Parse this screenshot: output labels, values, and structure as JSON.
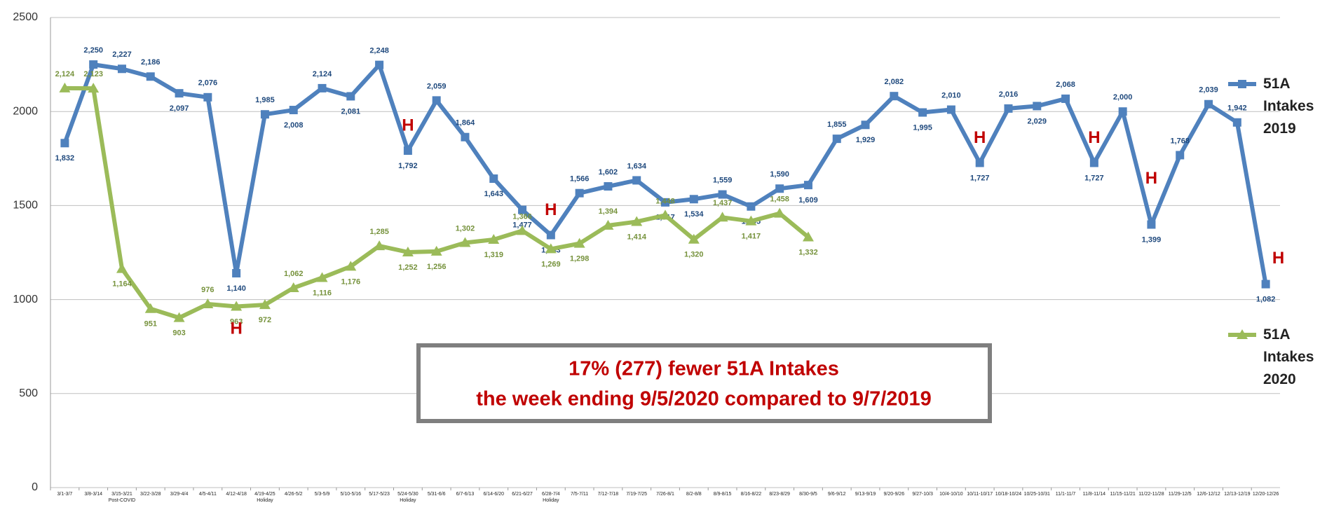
{
  "chart_data": {
    "type": "line",
    "categories": [
      "3/1-3/7",
      "3/8-3/14",
      "3/15-3/21",
      "3/22-3/28",
      "3/29-4/4",
      "4/5-4/11",
      "4/12-4/18",
      "4/19-4/25",
      "4/26-5/2",
      "5/3-5/9",
      "5/10-5/16",
      "5/17-5/23",
      "5/24-5/30",
      "5/31-6/6",
      "6/7-6/13",
      "6/14-6/20",
      "6/21-6/27",
      "6/28-7/4",
      "7/5-7/11",
      "7/12-7/18",
      "7/19-7/25",
      "7/26-8/1",
      "8/2-8/8",
      "8/9-8/15",
      "8/16-8/22",
      "8/23-8/29",
      "8/30-9/5",
      "9/6-9/12",
      "9/13-9/19",
      "9/20-9/26",
      "9/27-10/3",
      "10/4-10/10",
      "10/11-10/17",
      "10/18-10/24",
      "10/25-10/31",
      "11/1-11/7",
      "11/8-11/14",
      "11/15-11/21",
      "11/22-11/28",
      "11/29-12/5",
      "12/6-12/12",
      "12/13-12/19",
      "12/20-12/26"
    ],
    "category_notes": [
      null,
      null,
      "Post-COVID",
      null,
      null,
      null,
      null,
      "Holiday",
      null,
      null,
      null,
      null,
      "Holiday",
      null,
      null,
      null,
      null,
      "Holiday",
      null,
      null,
      null,
      null,
      null,
      null,
      null,
      null,
      null,
      null,
      null,
      null,
      null,
      null,
      null,
      null,
      null,
      null,
      null,
      null,
      null,
      null,
      null,
      null,
      null
    ],
    "markers": [
      null,
      null,
      null,
      null,
      null,
      null,
      "H",
      null,
      null,
      null,
      null,
      null,
      "H",
      null,
      null,
      null,
      null,
      "H",
      null,
      null,
      null,
      null,
      null,
      null,
      null,
      null,
      null,
      null,
      null,
      null,
      null,
      null,
      "H",
      null,
      null,
      null,
      "H",
      null,
      "H",
      null,
      null,
      null,
      "H"
    ],
    "series": [
      {
        "name": "51A Intakes 2019",
        "color": "#4f81bd",
        "label_color": "#1f497d",
        "marker": "square",
        "values": [
          1832,
          2250,
          2227,
          2186,
          2097,
          2076,
          1140,
          1985,
          2008,
          2124,
          2081,
          2248,
          1792,
          2059,
          1864,
          1643,
          1477,
          1343,
          1566,
          1602,
          1634,
          1517,
          1534,
          1559,
          1495,
          1590,
          1609,
          1855,
          1929,
          2082,
          1995,
          2010,
          1727,
          2016,
          2029,
          2068,
          1727,
          2000,
          1399,
          1768,
          2039,
          1942,
          1082
        ],
        "value_labels": [
          "1,832",
          "2,250",
          "2,227",
          "2,186",
          "2,097",
          "2,076",
          "1,140",
          "1,985",
          "2,008",
          "2,124",
          "2,081",
          "2,248",
          "1,792",
          "2,059",
          "1,864",
          "1,643",
          "1,477",
          "1,343",
          "1,566",
          "1,602",
          "1,634",
          "1,517",
          "1,534",
          "1,559",
          "1,495",
          "1,590",
          "1,609",
          "1,855",
          "1,929",
          "2,082",
          "1,995",
          "2,010",
          "1,727",
          "2,016",
          "2,029",
          "2,068",
          "1,727",
          "2,000",
          "1,399",
          "1,768",
          "2,039",
          "1,942",
          "1,082"
        ]
      },
      {
        "name": "51A Intakes 2020",
        "color": "#9bbb59",
        "label_color": "#76923c",
        "marker": "triangle",
        "values": [
          2124,
          2123,
          1164,
          951,
          903,
          976,
          963,
          972,
          1062,
          1116,
          1176,
          1285,
          1252,
          1256,
          1302,
          1319,
          1366,
          1269,
          1298,
          1394,
          1414,
          1448,
          1320,
          1437,
          1417,
          1458,
          1332,
          null,
          null,
          null,
          null,
          null,
          null,
          null,
          null,
          null,
          null,
          null,
          null,
          null,
          null,
          null,
          null
        ],
        "value_labels": [
          "2,124",
          "2,123",
          "1,164",
          "951",
          "903",
          "976",
          "963",
          "972",
          "1,062",
          "1,116",
          "1,176",
          "1,285",
          "1,252",
          "1,256",
          "1,302",
          "1,319",
          "1,366",
          "1,269",
          "1,298",
          "1,394",
          "1,414",
          "1,448",
          "1,320",
          "1,437",
          "1,417",
          "1,458",
          "1,332",
          null,
          null,
          null,
          null,
          null,
          null,
          null,
          null,
          null,
          null,
          null,
          null,
          null,
          null,
          null,
          null
        ]
      }
    ],
    "callout": [
      "17% (277) fewer 51A Intakes",
      "the week ending 9/5/2020 compared to 9/7/2019"
    ],
    "ylim": [
      0,
      2500
    ],
    "yticks": [
      0,
      500,
      1000,
      1500,
      2000,
      2500
    ],
    "grid": true
  }
}
